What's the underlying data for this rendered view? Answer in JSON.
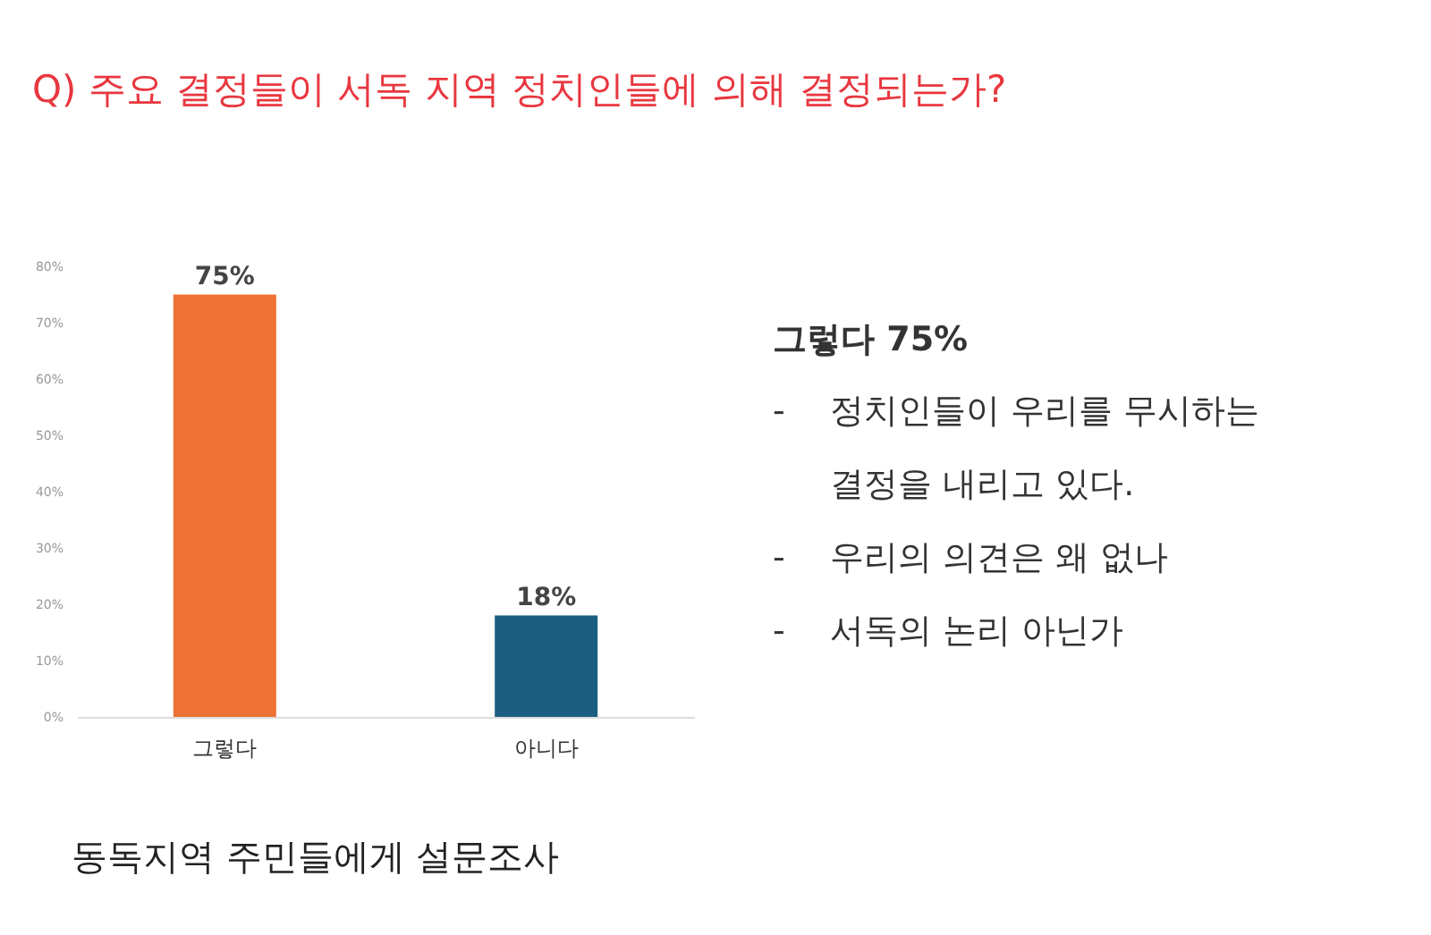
{
  "chart_data": {
    "type": "bar",
    "title": "Q) 주요 결정들이 서독 지역 정치인들에 의해 결정되는가?",
    "categories": [
      "그렇다",
      "아니다"
    ],
    "values": [
      75,
      18
    ],
    "colors": [
      "#ed7234",
      "#1b5e80"
    ],
    "value_labels": [
      "75%",
      "18%"
    ],
    "ylim": [
      0,
      80
    ],
    "yticks": [
      {
        "value": 0,
        "label": "0%"
      },
      {
        "value": 10,
        "label": "10%"
      },
      {
        "value": 20,
        "label": "20%"
      },
      {
        "value": 30,
        "label": "30%"
      },
      {
        "value": 40,
        "label": "40%"
      },
      {
        "value": 50,
        "label": "50%"
      },
      {
        "value": 60,
        "label": "60%"
      },
      {
        "value": 70,
        "label": "70%"
      },
      {
        "value": 80,
        "label": "80%"
      }
    ],
    "grid": false,
    "annotations": [
      "그렇다 75%",
      "- 정치인들이 우리를 무시하는 결정을 내리고 있다.",
      "- 우리의 의견은 왜 없나",
      "- 서독의 논리 아닌가",
      "동독지역 주민들에게 설문조사"
    ]
  }
}
